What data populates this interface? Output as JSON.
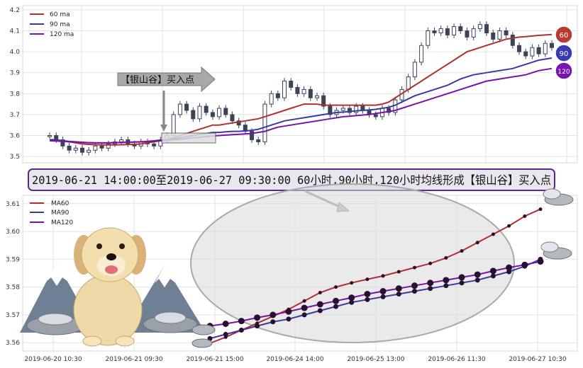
{
  "colors": {
    "ma60": "#b03030",
    "ma90": "#3a3aa0",
    "ma120": "#7a12a8",
    "candle": "#3a4456",
    "banner_border": "#5a2a8a",
    "grid": "#e2e2e2"
  },
  "top_panel": {
    "legend": [
      "60 ma",
      "90 ma",
      "120 ma"
    ],
    "y_ticks": [
      "4.2",
      "4.1",
      "4.0",
      "3.9",
      "3.8",
      "3.7",
      "3.6",
      "3.5"
    ],
    "ylim": [
      3.47,
      4.22
    ],
    "arrow_label": "【银山谷】买入点",
    "badges": [
      "60",
      "90",
      "120"
    ]
  },
  "banner": {
    "text": "2019-06-21 14:00:00至2019-06-27 09:30:00 60小时,90小时,120小时均线形成【银山谷】买入点"
  },
  "chart_data": [
    {
      "type": "candlestick",
      "ylim": [
        3.47,
        4.22
      ],
      "y_ticks": [
        3.5,
        3.6,
        3.7,
        3.8,
        3.9,
        4.0,
        4.1,
        4.2
      ],
      "legend": [
        "60 ma",
        "90 ma",
        "120 ma"
      ],
      "grid": true,
      "legend_position": "top-left",
      "close": [
        3.6,
        3.58,
        3.55,
        3.53,
        3.54,
        3.52,
        3.53,
        3.55,
        3.54,
        3.56,
        3.57,
        3.58,
        3.56,
        3.55,
        3.57,
        3.56,
        3.55,
        3.58,
        3.6,
        3.7,
        3.75,
        3.72,
        3.68,
        3.74,
        3.71,
        3.69,
        3.73,
        3.7,
        3.67,
        3.65,
        3.62,
        3.58,
        3.57,
        3.75,
        3.8,
        3.78,
        3.86,
        3.83,
        3.8,
        3.82,
        3.78,
        3.79,
        3.74,
        3.7,
        3.72,
        3.73,
        3.71,
        3.74,
        3.72,
        3.7,
        3.69,
        3.73,
        3.71,
        3.77,
        3.82,
        3.88,
        3.95,
        4.03,
        4.1,
        4.09,
        4.11,
        4.08,
        4.12,
        4.1,
        4.07,
        4.11,
        4.13,
        4.09,
        4.06,
        4.1,
        4.08,
        4.03,
        4.0,
        3.98,
        4.02,
        3.99,
        4.04,
        4.02
      ],
      "series": [
        {
          "name": "60 ma",
          "values": [
            3.58,
            3.58,
            3.575,
            3.57,
            3.565,
            3.56,
            3.558,
            3.556,
            3.555,
            3.555,
            3.555,
            3.556,
            3.557,
            3.558,
            3.56,
            3.565,
            3.57,
            3.575,
            3.58,
            3.59,
            3.6,
            3.61,
            3.62,
            3.63,
            3.64,
            3.65,
            3.65,
            3.655,
            3.66,
            3.665,
            3.67,
            3.675,
            3.68,
            3.69,
            3.7,
            3.71,
            3.72,
            3.73,
            3.74,
            3.75,
            3.75,
            3.75,
            3.745,
            3.745,
            3.745,
            3.745,
            3.745,
            3.745,
            3.745,
            3.745,
            3.745,
            3.75,
            3.76,
            3.78,
            3.8,
            3.82,
            3.84,
            3.86,
            3.88,
            3.9,
            3.92,
            3.94,
            3.96,
            3.98,
            4.0,
            4.01,
            4.02,
            4.03,
            4.04,
            4.05,
            4.06,
            4.065,
            4.07,
            4.072,
            4.075,
            4.078,
            4.08,
            4.082
          ]
        },
        {
          "name": "90 ma",
          "values": [
            3.58,
            3.578,
            3.575,
            3.572,
            3.57,
            3.568,
            3.566,
            3.565,
            3.565,
            3.565,
            3.566,
            3.567,
            3.568,
            3.569,
            3.57,
            3.572,
            3.575,
            3.578,
            3.58,
            3.585,
            3.59,
            3.595,
            3.6,
            3.605,
            3.61,
            3.615,
            3.615,
            3.618,
            3.62,
            3.62,
            3.622,
            3.625,
            3.63,
            3.64,
            3.65,
            3.66,
            3.67,
            3.675,
            3.68,
            3.685,
            3.69,
            3.695,
            3.7,
            3.705,
            3.71,
            3.712,
            3.715,
            3.718,
            3.72,
            3.722,
            3.725,
            3.73,
            3.735,
            3.745,
            3.76,
            3.775,
            3.79,
            3.8,
            3.81,
            3.82,
            3.83,
            3.84,
            3.855,
            3.87,
            3.88,
            3.89,
            3.895,
            3.9,
            3.905,
            3.91,
            3.915,
            3.92,
            3.93,
            3.94,
            3.95,
            3.96,
            3.965,
            3.97
          ]
        },
        {
          "name": "120 ma",
          "values": [
            3.575,
            3.574,
            3.572,
            3.57,
            3.568,
            3.567,
            3.566,
            3.565,
            3.565,
            3.565,
            3.566,
            3.567,
            3.568,
            3.569,
            3.57,
            3.571,
            3.573,
            3.575,
            3.577,
            3.58,
            3.583,
            3.586,
            3.589,
            3.592,
            3.595,
            3.598,
            3.6,
            3.602,
            3.604,
            3.606,
            3.608,
            3.61,
            3.615,
            3.62,
            3.63,
            3.64,
            3.645,
            3.65,
            3.655,
            3.66,
            3.665,
            3.67,
            3.675,
            3.68,
            3.685,
            3.69,
            3.692,
            3.695,
            3.698,
            3.7,
            3.705,
            3.71,
            3.715,
            3.72,
            3.73,
            3.74,
            3.75,
            3.76,
            3.77,
            3.78,
            3.79,
            3.8,
            3.81,
            3.82,
            3.83,
            3.84,
            3.85,
            3.86,
            3.865,
            3.87,
            3.875,
            3.88,
            3.885,
            3.89,
            3.9,
            3.91,
            3.915,
            3.92
          ]
        }
      ]
    },
    {
      "type": "line",
      "ylim": [
        3.557,
        3.613
      ],
      "y_ticks": [
        "3.61",
        "3.60",
        "3.59",
        "3.58",
        "3.57",
        "3.56"
      ],
      "x_ticks": [
        "2019-06-20 10:30",
        "2019-06-21 09:30",
        "2019-06-21 15:00",
        "2019-06-24 14:00",
        "2019-06-25 13:00",
        "2019-06-26 11:30",
        "2019-06-27 10:30"
      ],
      "legend": [
        "MA60",
        "MA90",
        "MA120"
      ],
      "grid": true,
      "legend_position": "top-left",
      "series": [
        {
          "name": "MA60",
          "values": [
            3.5598,
            3.562,
            3.5645,
            3.567,
            3.5695,
            3.572,
            3.575,
            3.578,
            3.58,
            3.5815,
            3.5828,
            3.584,
            3.5855,
            3.587,
            3.5885,
            3.5905,
            3.593,
            3.596,
            3.599,
            3.602,
            3.6055,
            3.608
          ]
        },
        {
          "name": "MA90",
          "values": [
            3.5615,
            3.563,
            3.5645,
            3.566,
            3.5675,
            3.5685,
            3.57,
            3.5715,
            3.573,
            3.5745,
            3.5755,
            3.5765,
            3.5775,
            3.5785,
            3.5795,
            3.5805,
            3.5815,
            3.5825,
            3.584,
            3.5855,
            3.5875,
            3.59
          ]
        },
        {
          "name": "MA120",
          "values": [
            3.566,
            3.5668,
            3.5678,
            3.569,
            3.57,
            3.5712,
            3.5725,
            3.5738,
            3.575,
            3.5762,
            3.5775,
            3.5785,
            3.5795,
            3.5805,
            3.5815,
            3.5825,
            3.5835,
            3.5845,
            3.5858,
            3.587,
            3.588,
            3.5892
          ]
        }
      ]
    }
  ]
}
